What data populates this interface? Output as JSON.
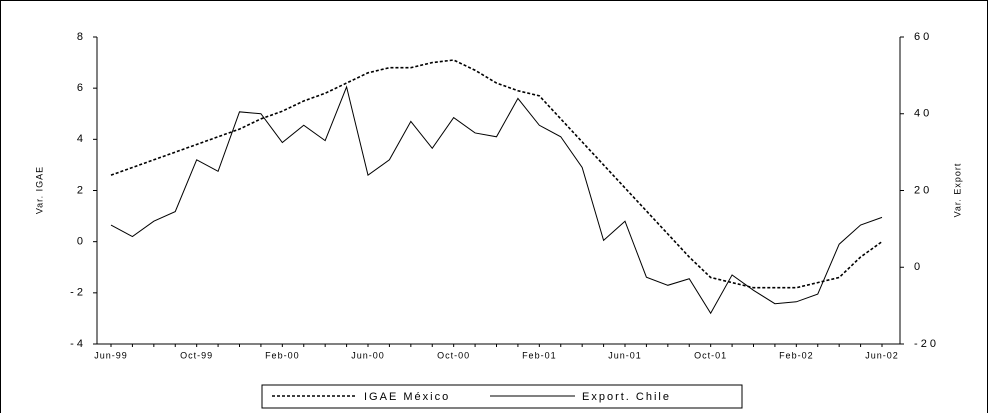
{
  "chart_data": {
    "type": "line",
    "y_label": "Var. IGAE",
    "y2_label": "Var. Export",
    "categories": [
      "Jun-99",
      null,
      null,
      null,
      "Oct-99",
      null,
      null,
      null,
      "Feb-00",
      null,
      null,
      null,
      "Jun-00",
      null,
      null,
      null,
      "Oct-00",
      null,
      null,
      null,
      "Feb-01",
      null,
      null,
      null,
      "Jun-01",
      null,
      null,
      null,
      "Oct-01",
      null,
      null,
      null,
      "Feb-02",
      null,
      null,
      null,
      "Jun-02"
    ],
    "series": [
      {
        "name": "IGAE México",
        "color": "#000000",
        "dash": true,
        "values": [
          2.6,
          2.9,
          3.2,
          3.5,
          3.8,
          4.1,
          4.4,
          4.8,
          5.1,
          5.5,
          5.8,
          6.2,
          6.6,
          6.8,
          6.8,
          7.0,
          7.1,
          6.7,
          6.2,
          5.9,
          5.7,
          4.8,
          3.9,
          3.0,
          2.1,
          1.2,
          0.3,
          -0.6,
          -1.4,
          -1.6,
          -1.8,
          -1.8,
          -1.8,
          -1.6,
          -1.4,
          -0.6,
          0.0
        ]
      },
      {
        "name": "Export. Chile",
        "color": "#000000",
        "axis": "y2",
        "values": [
          11,
          8,
          12,
          14.5,
          28,
          25,
          40.5,
          40,
          32.5,
          37,
          33,
          47,
          24,
          28,
          38,
          31,
          39,
          35,
          34,
          44,
          37,
          34,
          26,
          7,
          12,
          -2.6,
          -4.7,
          -3,
          -12,
          -2,
          -6,
          -9.5,
          -9,
          -7,
          6,
          11,
          13
        ]
      }
    ],
    "ylim": [
      -4,
      8
    ],
    "yticks": [
      {
        "value": -4,
        "label": "- 4"
      },
      {
        "value": -2,
        "label": "- 2"
      },
      0,
      2,
      4,
      6,
      8
    ],
    "y2lim": [
      -20,
      60
    ],
    "y2ticks": [
      {
        "value": -20,
        "label": "- 2 0"
      },
      0,
      {
        "value": 20,
        "label": "2 0"
      },
      {
        "value": 40,
        "label": "4 0"
      },
      {
        "value": 60,
        "label": "6 0"
      }
    ],
    "legend": "bottom"
  }
}
